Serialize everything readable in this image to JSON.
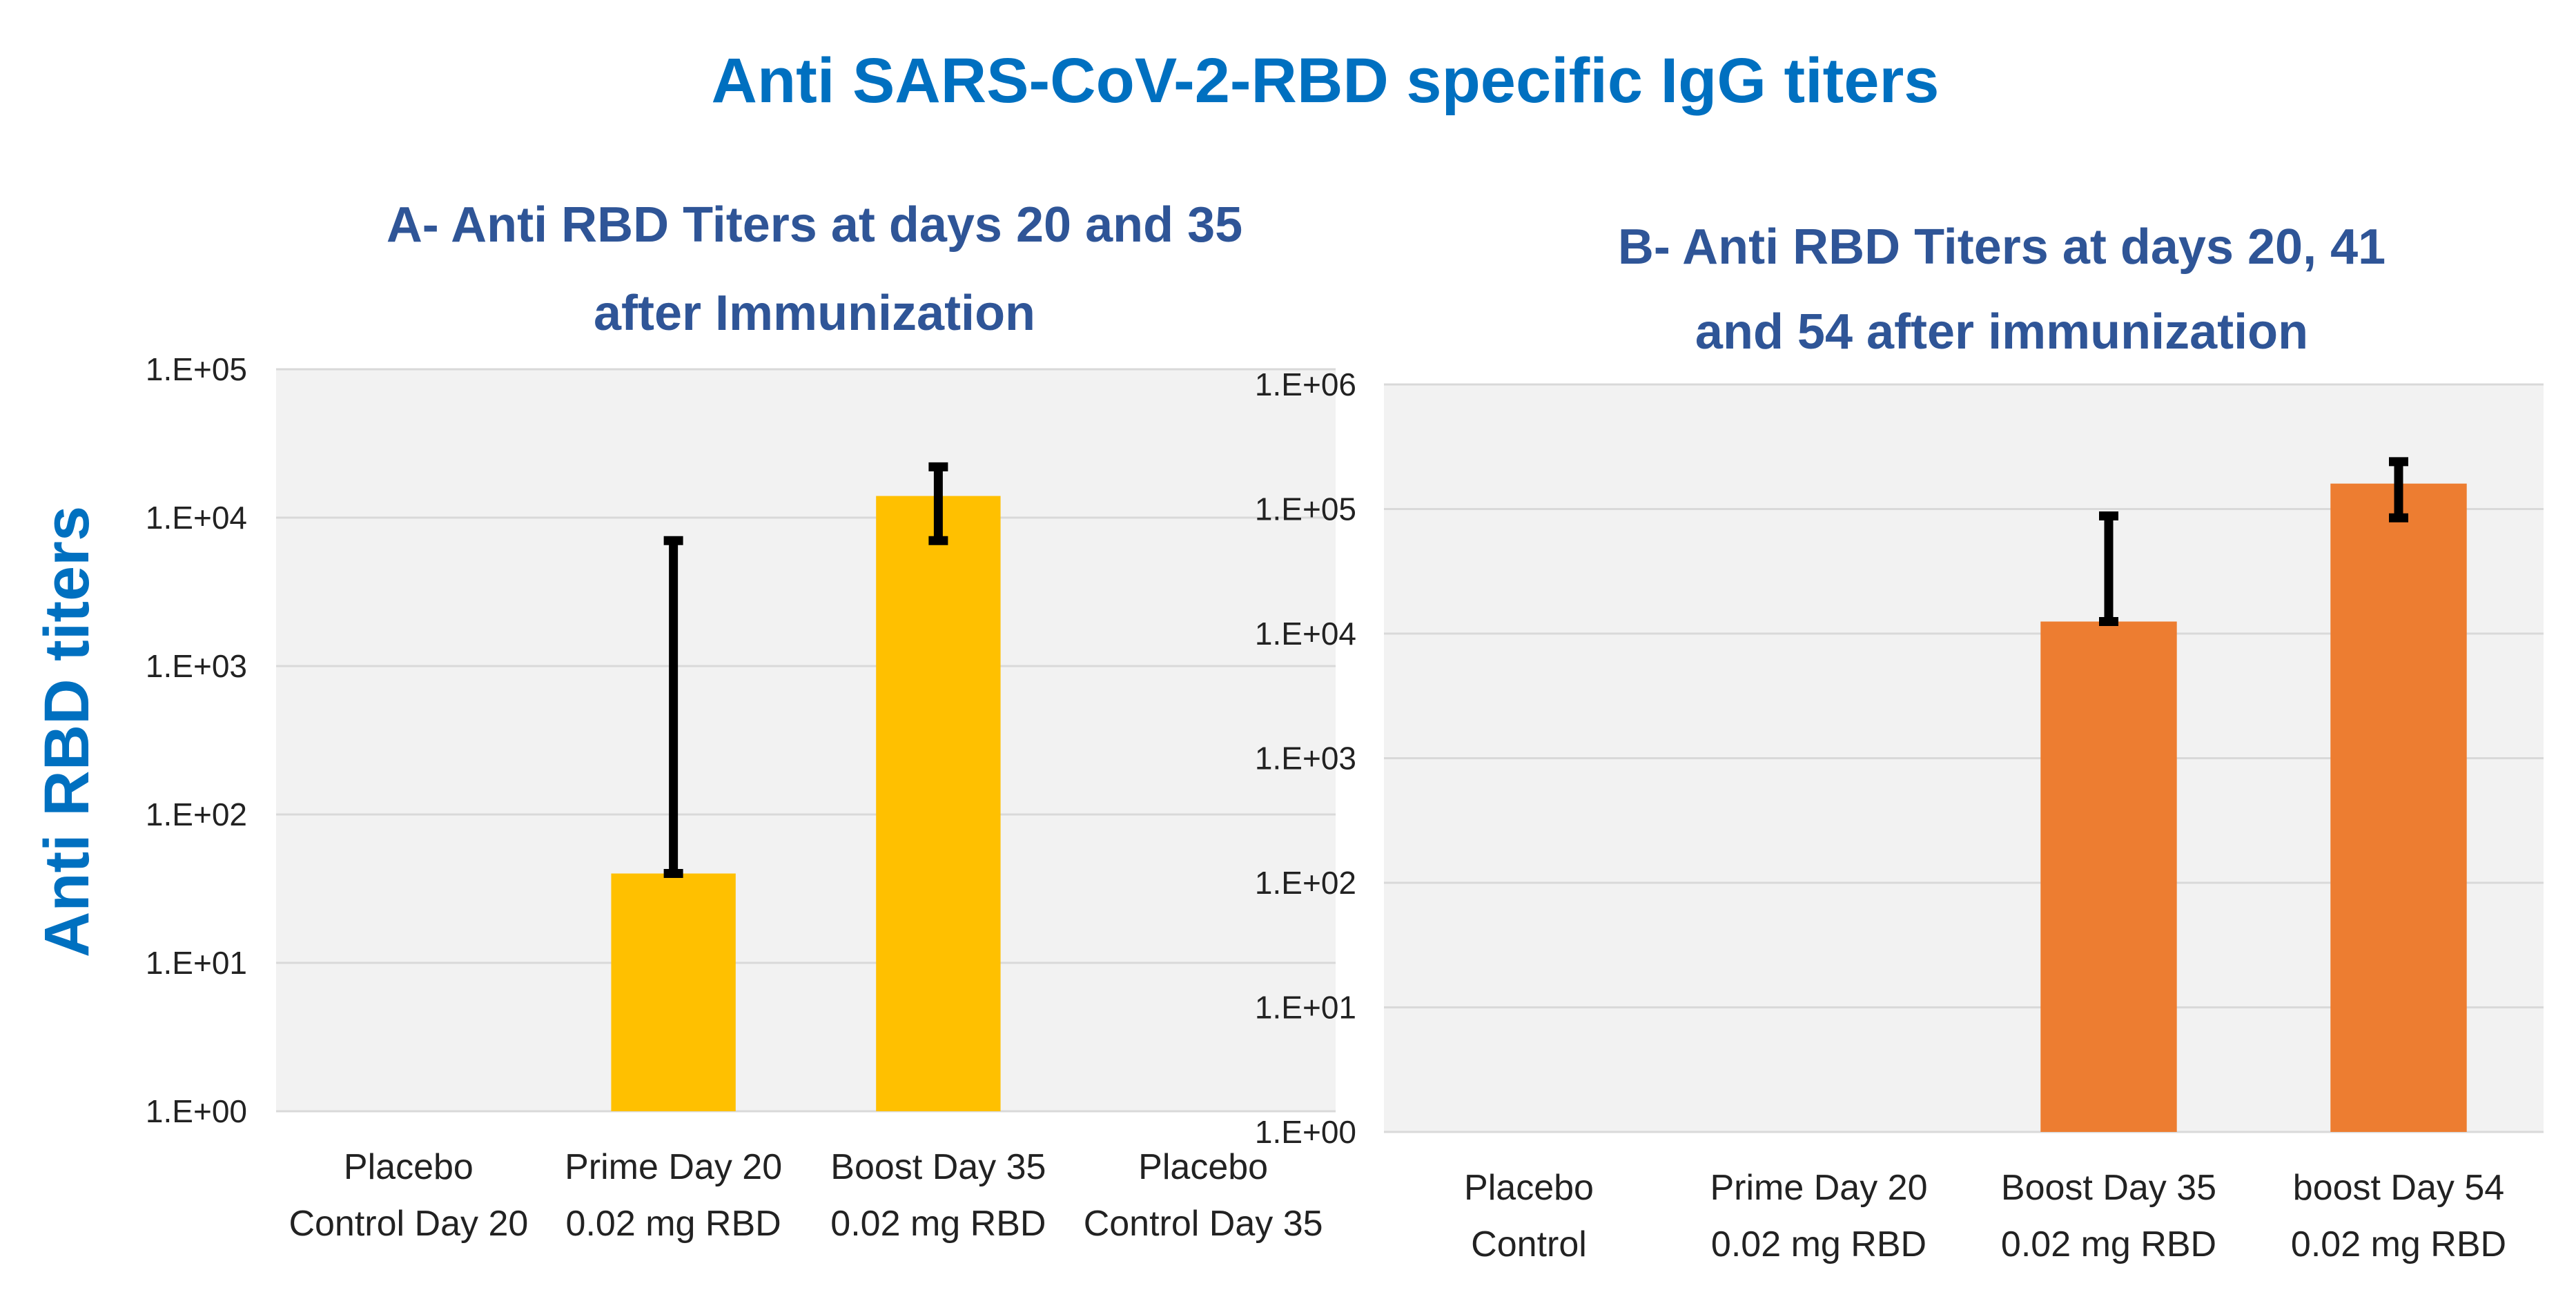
{
  "figure": {
    "title": "Anti SARS-CoV-2-RBD specific IgG titers",
    "ylabel": "Anti RBD titers",
    "colors": {
      "title": "#0070C0",
      "subtitle": "#2F5597",
      "text": "#222222",
      "plot_bg": "#F2F2F2",
      "grid": "#D9D9D9",
      "error_bar": "#000000"
    }
  },
  "chart_data": [
    {
      "id": "A",
      "type": "bar",
      "title_lines": [
        "A- Anti RBD Titers at days 20 and 35",
        "after Immunization"
      ],
      "yscale": "log",
      "ylim": [
        1,
        100000
      ],
      "yticks": [
        {
          "value": 1,
          "label": "1.E+00"
        },
        {
          "value": 10,
          "label": "1.E+01"
        },
        {
          "value": 100,
          "label": "1.E+02"
        },
        {
          "value": 1000,
          "label": "1.E+03"
        },
        {
          "value": 10000,
          "label": "1.E+04"
        },
        {
          "value": 100000,
          "label": "1.E+05"
        }
      ],
      "grid": true,
      "bar_color": "#FFC000",
      "categories": [
        [
          "Placebo",
          "Control Day 20"
        ],
        [
          "Prime Day 20",
          "0.02 mg RBD"
        ],
        [
          "Boost Day 35",
          "0.02 mg RBD"
        ],
        [
          "Placebo",
          "Control Day 35"
        ]
      ],
      "values": [
        null,
        40,
        14000,
        null
      ],
      "error_low": [
        null,
        40,
        7000,
        null
      ],
      "error_high": [
        null,
        7000,
        22000,
        null
      ]
    },
    {
      "id": "B",
      "type": "bar",
      "title_lines": [
        "B- Anti RBD Titers at days 20, 41",
        "and 54 after immunization"
      ],
      "yscale": "log",
      "ylim": [
        1,
        1000000
      ],
      "yticks": [
        {
          "value": 1,
          "label": "1.E+00"
        },
        {
          "value": 10,
          "label": "1.E+01"
        },
        {
          "value": 100,
          "label": "1.E+02"
        },
        {
          "value": 1000,
          "label": "1.E+03"
        },
        {
          "value": 10000,
          "label": "1.E+04"
        },
        {
          "value": 100000,
          "label": "1.E+05"
        },
        {
          "value": 1000000,
          "label": "1.E+06"
        }
      ],
      "grid": true,
      "bar_color": "#ED7D31",
      "categories": [
        [
          "Placebo",
          "Control"
        ],
        [
          "Prime Day 20",
          "0.02 mg RBD"
        ],
        [
          "Boost Day 35",
          "0.02 mg RBD"
        ],
        [
          "boost Day 54",
          "0.02 mg RBD"
        ]
      ],
      "values": [
        null,
        null,
        12500,
        160000
      ],
      "error_low": [
        null,
        null,
        12500,
        85000
      ],
      "error_high": [
        null,
        null,
        88000,
        240000
      ]
    }
  ]
}
